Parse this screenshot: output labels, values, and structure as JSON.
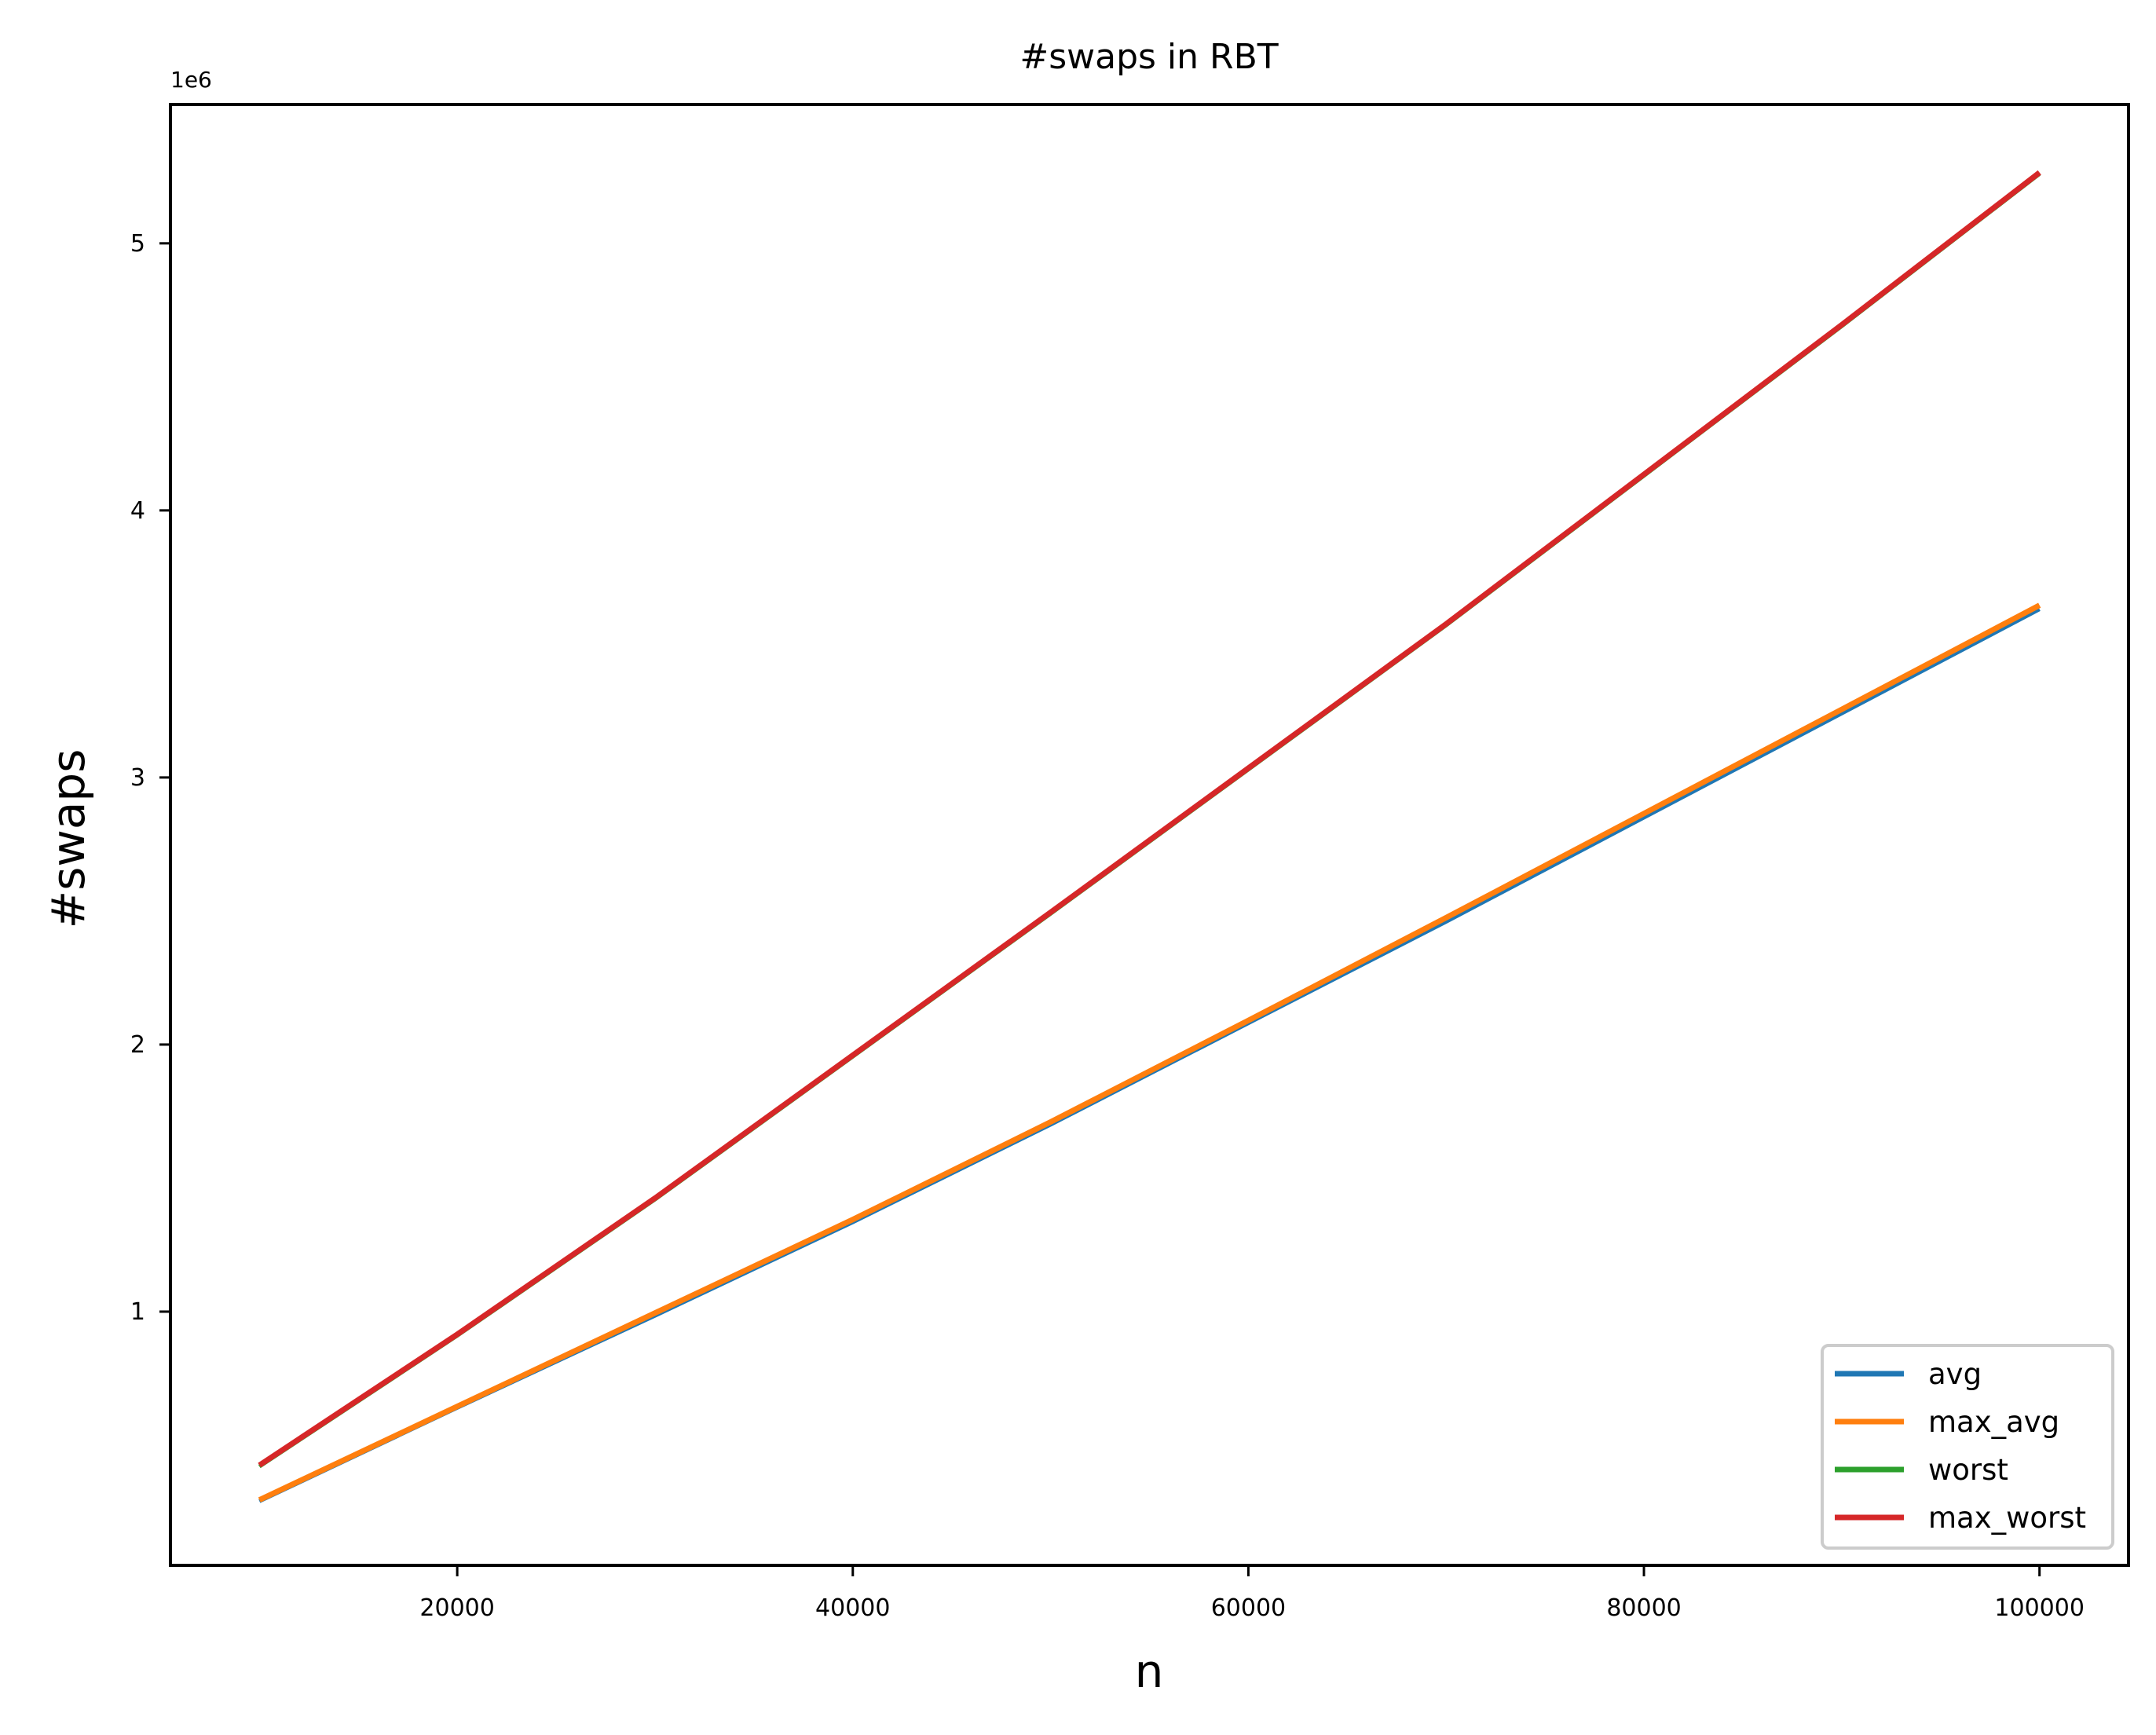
{
  "chart_data": {
    "type": "line",
    "title": "#swaps in RBT",
    "xlabel": "n",
    "ylabel": "#swaps",
    "y_offset_label": "1e6",
    "y_scale_factor": 1000000,
    "xlim": [
      5500,
      104500
    ],
    "ylim": [
      50000,
      5520000
    ],
    "xticks": [
      20000,
      40000,
      60000,
      80000,
      100000
    ],
    "xtick_labels": [
      "20000",
      "40000",
      "60000",
      "80000",
      "100000"
    ],
    "yticks": [
      1000000,
      2000000,
      3000000,
      4000000,
      5000000
    ],
    "ytick_labels": [
      "1",
      "2",
      "3",
      "4",
      "5"
    ],
    "grid": false,
    "legend_position": "lower right",
    "x": [
      10000,
      20000,
      30000,
      40000,
      50000,
      60000,
      70000,
      80000,
      90000,
      100000
    ],
    "series": [
      {
        "name": "avg",
        "color": "#1f77b4",
        "values": [
          290000,
          640000,
          985000,
          1335000,
          1700000,
          2080000,
          2460000,
          2850000,
          3240000,
          3630000
        ]
      },
      {
        "name": "max_avg",
        "color": "#ff7f0e",
        "values": [
          295000,
          645000,
          995000,
          1345000,
          1710000,
          2090000,
          2475000,
          2865000,
          3255000,
          3645000
        ]
      },
      {
        "name": "worst",
        "color": "#2ca02c",
        "values": [
          420000,
          910000,
          1420000,
          1955000,
          2490000,
          3030000,
          3570000,
          4130000,
          4690000,
          5260000
        ]
      },
      {
        "name": "max_worst",
        "color": "#d62728",
        "values": [
          425000,
          915000,
          1425000,
          1960000,
          2495000,
          3035000,
          3575000,
          4135000,
          4695000,
          5265000
        ]
      }
    ]
  }
}
